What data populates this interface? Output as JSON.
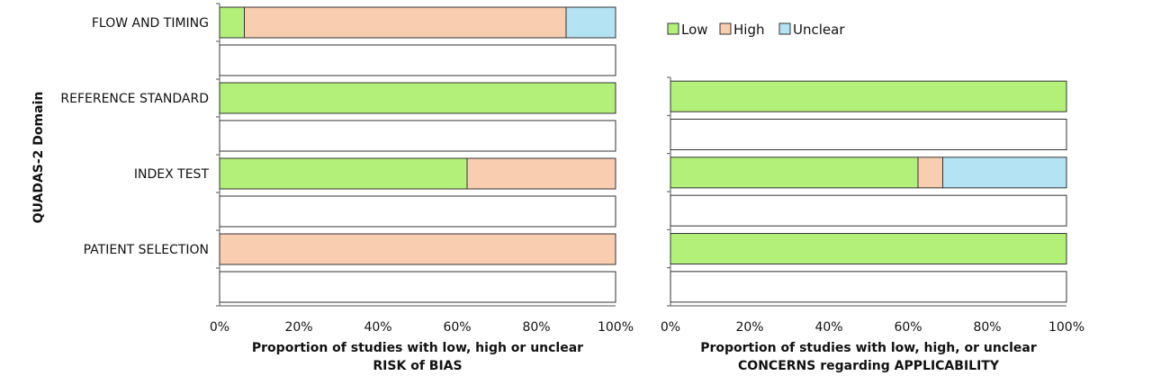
{
  "legend": [
    {
      "label": "Low",
      "color": "#b3f07a"
    },
    {
      "label": "High",
      "color": "#f9cdb0"
    },
    {
      "label": "Unclear",
      "color": "#b4e3f4"
    }
  ],
  "ylabel": "QUADAS-2 Domain",
  "chart_data": [
    {
      "type": "bar",
      "orientation": "horizontal",
      "stacked": true,
      "categories": [
        "FLOW AND TIMING",
        "REFERENCE STANDARD",
        "INDEX TEST",
        "PATIENT SELECTION"
      ],
      "series": [
        {
          "name": "Low",
          "color": "#b3f07a",
          "values": [
            6.25,
            100,
            62.5,
            0
          ]
        },
        {
          "name": "High",
          "color": "#f9cdb0",
          "values": [
            81.25,
            0,
            37.5,
            100
          ]
        },
        {
          "name": "Unclear",
          "color": "#b4e3f4",
          "values": [
            12.5,
            0,
            0,
            0
          ]
        }
      ],
      "xticks": [
        "0%",
        "20%",
        "40%",
        "60%",
        "80%",
        "100%"
      ],
      "xlim": [
        0,
        100
      ],
      "xlabel": [
        "Proportion of studies with low, high or unclear",
        "RISK of BIAS"
      ],
      "ylabel": "QUADAS-2 Domain"
    },
    {
      "type": "bar",
      "orientation": "horizontal",
      "stacked": true,
      "categories": [
        "REFERENCE STANDARD",
        "INDEX TEST",
        "PATIENT SELECTION"
      ],
      "series": [
        {
          "name": "Low",
          "color": "#b3f07a",
          "values": [
            100,
            62.5,
            100
          ]
        },
        {
          "name": "High",
          "color": "#f9cdb0",
          "values": [
            0,
            6.25,
            0
          ]
        },
        {
          "name": "Unclear",
          "color": "#b4e3f4",
          "values": [
            0,
            31.25,
            0
          ]
        }
      ],
      "xticks": [
        "0%",
        "20%",
        "40%",
        "60%",
        "80%",
        "100%"
      ],
      "xlim": [
        0,
        100
      ],
      "xlabel": [
        "Proportion of studies with low, high, or unclear",
        "CONCERNS regarding APPLICABILITY"
      ]
    }
  ]
}
